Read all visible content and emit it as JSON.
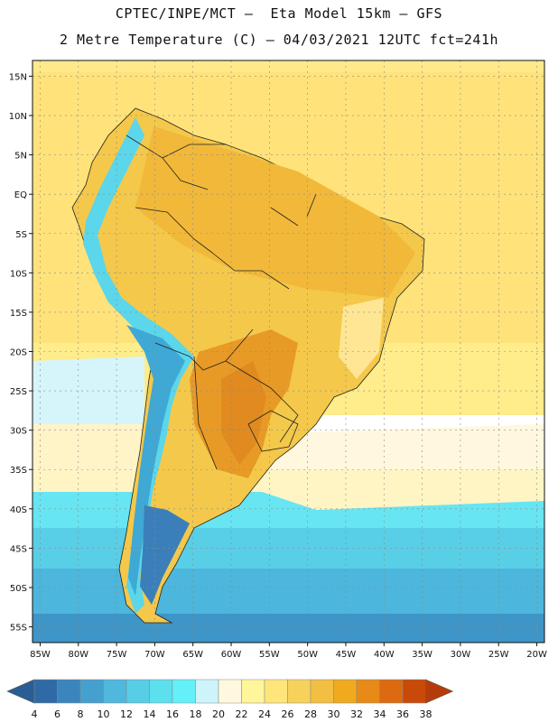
{
  "header": {
    "line1": "CPTEC/INPE/MCT –  Eta Model 15km – GFS",
    "line2": "2 Metre Temperature (C) – 04/03/2021 12UTC fct=241h"
  },
  "axes": {
    "lat_ticks": [
      "15N",
      "10N",
      "5N",
      "EQ",
      "5S",
      "10S",
      "15S",
      "20S",
      "25S",
      "30S",
      "35S",
      "40S",
      "45S",
      "50S",
      "55S"
    ],
    "lat_values": [
      15,
      10,
      5,
      0,
      -5,
      -10,
      -15,
      -20,
      -25,
      -30,
      -35,
      -40,
      -45,
      -50,
      -55
    ],
    "lon_ticks": [
      "85W",
      "80W",
      "75W",
      "70W",
      "65W",
      "60W",
      "55W",
      "50W",
      "45W",
      "40W",
      "35W",
      "30W",
      "25W",
      "20W"
    ],
    "lon_values": [
      -85,
      -80,
      -75,
      -70,
      -65,
      -60,
      -55,
      -50,
      -45,
      -40,
      -35,
      -30,
      -25,
      -20
    ],
    "lat_range": [
      -57,
      17
    ],
    "lon_range": [
      -86,
      -19
    ]
  },
  "colorbar": {
    "labels": [
      "4",
      "6",
      "8",
      "10",
      "12",
      "14",
      "16",
      "18",
      "20",
      "22",
      "24",
      "26",
      "28",
      "30",
      "32",
      "34",
      "36",
      "38"
    ],
    "colors": [
      "#2f6aa6",
      "#3a85bd",
      "#45a0cf",
      "#4fb8dc",
      "#57cde6",
      "#5ddfee",
      "#64f0f8",
      "#cdf4fb",
      "#fff8df",
      "#fff59a",
      "#ffe57a",
      "#f7d25a",
      "#f2bf42",
      "#f0aa1e",
      "#e78a18",
      "#dd6a10",
      "#c94a08"
    ],
    "under_color": "#2a5d93",
    "over_color": "#b53c0a"
  }
}
